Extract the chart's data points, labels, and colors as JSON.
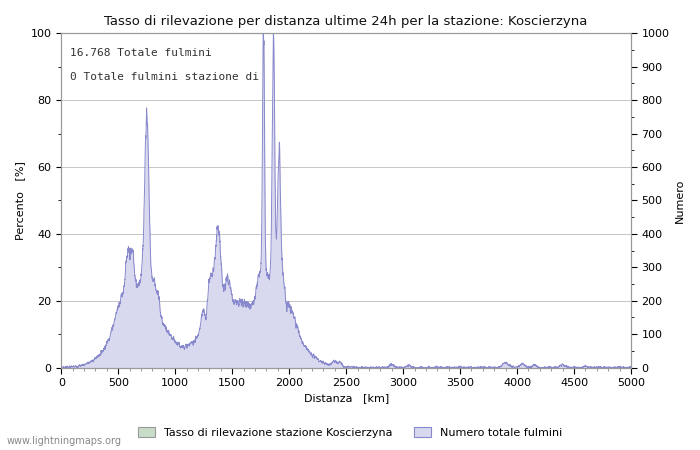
{
  "title": "Tasso di rilevazione per distanza ultime 24h per la stazione: Koscierzyna",
  "xlabel": "Distanza   [km]",
  "ylabel_left": "Percento   [%]",
  "ylabel_right": "Numero",
  "annotation_line1": "16.768 Totale fulmini",
  "annotation_line2": "0 Totale fulmini stazione di",
  "legend_label1": "Tasso di rilevazione stazione Koscierzyna",
  "legend_label2": "Numero totale fulmini",
  "watermark": "www.lightningmaps.org",
  "xlim": [
    0,
    5000
  ],
  "ylim_left": [
    0,
    100
  ],
  "ylim_right": [
    0,
    1000
  ],
  "xticks": [
    0,
    500,
    1000,
    1500,
    2000,
    2500,
    3000,
    3500,
    4000,
    4500,
    5000
  ],
  "yticks_left": [
    0,
    20,
    40,
    60,
    80,
    100
  ],
  "yticks_right": [
    0,
    100,
    200,
    300,
    400,
    500,
    600,
    700,
    800,
    900,
    1000
  ],
  "line_color": "#8888cc",
  "fill_color": "#d8d8ee",
  "green_fill_color": "#c8ddc8",
  "background_color": "#ffffff",
  "grid_color": "#bbbbbb"
}
